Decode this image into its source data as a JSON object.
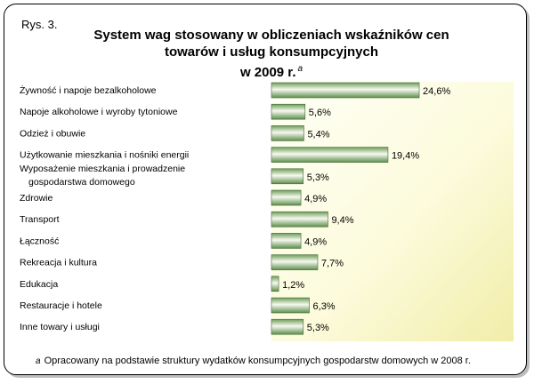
{
  "figure_label": "Rys. 3.",
  "title_line1": "System wag stosowany w obliczeniach wskaźników cen",
  "title_line2": "towarów i usług konsumpcyjnych",
  "title_line3": "w 2009 r.",
  "title_footnote_mark": "a",
  "footnote_mark": "a",
  "footnote_text": "Opracowany na podstawie struktury wydatków konsumpcyjnych gospodarstw domowych w 2008 r.",
  "chart_data": {
    "type": "bar",
    "orientation": "horizontal",
    "categories": [
      "Żywność i napoje bezalkoholowe",
      "Napoje alkoholowe i wyroby tytoniowe",
      "Odzież i obuwie",
      "Użytkowanie mieszkania i nośniki energii",
      "Wyposażenie mieszkania i prowadzenie\ngospodarstwa domowego",
      "Zdrowie",
      "Transport",
      "Łączność",
      "Rekreacja i kultura",
      "Edukacja",
      "Restauracje i hotele",
      "Inne towary i usługi"
    ],
    "values": [
      24.6,
      5.6,
      5.4,
      19.4,
      5.3,
      4.9,
      9.4,
      4.9,
      7.7,
      1.2,
      6.3,
      5.3
    ],
    "value_labels": [
      "24,6%",
      "5,6%",
      "5,4%",
      "19,4%",
      "5,3%",
      "4,9%",
      "9,4%",
      "4,9%",
      "7,7%",
      "1,2%",
      "6,3%",
      "5,3%"
    ],
    "xlim": [
      0,
      30
    ],
    "grid": false,
    "legend": "none",
    "colors": {
      "bar_dark": "#5e8e4c",
      "bar_light": "#f4f8ee",
      "bar_mid": "#a9c890",
      "plot_bg_light": "#fffff0",
      "plot_bg_dark": "#f3efae"
    }
  }
}
